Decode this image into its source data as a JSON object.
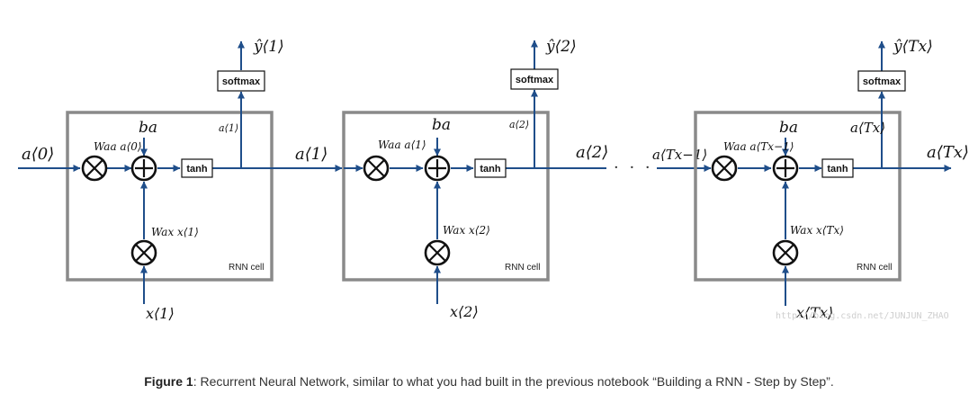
{
  "diagram": {
    "ops": {
      "multiply": "⊗",
      "add": "+",
      "tanh": "tanh",
      "softmax": "softmax"
    },
    "cell_label": "RNN cell",
    "initial_state": "a⟨0⟩",
    "between_states": [
      "a⟨1⟩",
      "a⟨2⟩",
      "a⟨Tx−1⟩"
    ],
    "final_state": "a⟨Tx⟩",
    "ellipsis": "· · ·",
    "cells": [
      {
        "y_hat": "ŷ⟨1⟩",
        "hidden_up": "a⟨1⟩",
        "bias": "ba",
        "waa_term": "Waa a⟨0⟩",
        "wax_term": "Wax x⟨1⟩",
        "x_input": "x⟨1⟩"
      },
      {
        "y_hat": "ŷ⟨2⟩",
        "hidden_up": "a⟨2⟩",
        "bias": "ba",
        "waa_term": "Waa a⟨1⟩",
        "wax_term": "Wax x⟨2⟩",
        "x_input": "x⟨2⟩"
      },
      {
        "y_hat": "ŷ⟨Tx⟩",
        "hidden_up": "a⟨Tx⟩",
        "bias": "ba",
        "waa_term": "Waa a⟨Tx−1⟩",
        "wax_term": "Wax x⟨Tx⟩",
        "x_input": "x⟨Tx⟩"
      }
    ],
    "watermark": "http://blog.csdn.net/JUNJUN_ZHAO"
  },
  "caption": {
    "label": "Figure 1",
    "text": ": Recurrent Neural Network, similar to what you had built in the previous notebook “Building a RNN - Step by Step”."
  }
}
